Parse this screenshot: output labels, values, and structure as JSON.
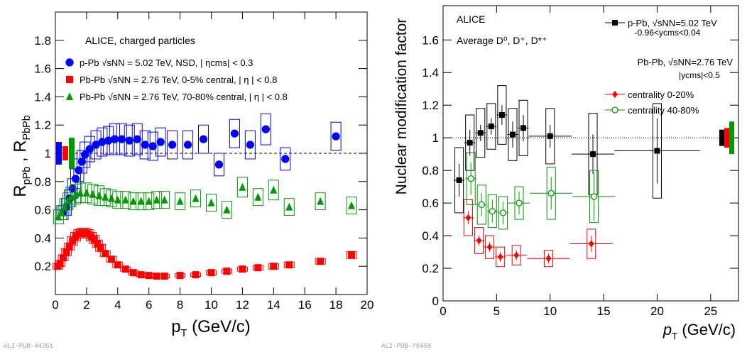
{
  "chart_data": [
    {
      "type": "scatter",
      "xlabel": [
        "p",
        "T",
        " (GeV/c)"
      ],
      "ylabel": [
        "R",
        "pPb",
        " , R",
        "PbPb"
      ],
      "annotations": [
        "ALICE, charged particles"
      ],
      "footnote": "ALI-PUB-44351",
      "xlim": [
        0,
        20
      ],
      "ylim": [
        0,
        2.0
      ],
      "xticks": [
        0,
        2,
        4,
        6,
        8,
        10,
        12,
        14,
        16,
        18,
        20
      ],
      "yticks": [
        0.2,
        0.4,
        0.6,
        0.8,
        1,
        1.2,
        1.4,
        1.6,
        1.8
      ],
      "ref_line": 1,
      "ref_style": "dashed",
      "series": [
        {
          "name": "p-Pb  √sNN = 5.02 TeV,  NSD, | ηcms| < 0.3",
          "color": "#0000ff",
          "marker": "circle",
          "x": [
            0.5,
            0.7,
            0.9,
            1.1,
            1.3,
            1.5,
            1.7,
            1.9,
            2.2,
            2.6,
            3.0,
            3.4,
            3.8,
            4.25,
            4.75,
            5.25,
            5.75,
            6.25,
            6.75,
            7.5,
            8.5,
            9.5,
            10.5,
            11.5,
            12.5,
            13.5,
            14.75,
            18
          ],
          "values": [
            0.58,
            0.62,
            0.68,
            0.75,
            0.82,
            0.88,
            0.94,
            0.99,
            1.03,
            1.06,
            1.08,
            1.09,
            1.1,
            1.1,
            1.09,
            1.1,
            1.06,
            1.05,
            1.08,
            1.06,
            1.06,
            1.1,
            0.92,
            1.14,
            1.06,
            1.17,
            0.96,
            1.12
          ],
          "sys": [
            0.05,
            0.06,
            0.06,
            0.07,
            0.07,
            0.08,
            0.08,
            0.09,
            0.09,
            0.1,
            0.1,
            0.1,
            0.11,
            0.11,
            0.11,
            0.11,
            0.1,
            0.1,
            0.1,
            0.1,
            0.1,
            0.1,
            0.08,
            0.1,
            0.1,
            0.11,
            0.08,
            0.1
          ]
        },
        {
          "name": "Pb-Pb  √sNN = 2.76 TeV,  0-5% central, | η | < 0.8",
          "color": "#ff0000",
          "marker": "square",
          "x": [
            0.15,
            0.3,
            0.5,
            0.7,
            0.9,
            1.1,
            1.3,
            1.5,
            1.7,
            1.9,
            2.1,
            2.3,
            2.5,
            2.7,
            2.9,
            3.2,
            3.6,
            4.0,
            4.5,
            5.0,
            5.5,
            6.0,
            6.5,
            7.0,
            8.0,
            9.0,
            10.0,
            11.0,
            12.0,
            13.0,
            14.0,
            15.0,
            17.0,
            19.0
          ],
          "values": [
            0.2,
            0.22,
            0.26,
            0.3,
            0.34,
            0.38,
            0.41,
            0.43,
            0.44,
            0.44,
            0.43,
            0.41,
            0.39,
            0.36,
            0.33,
            0.29,
            0.25,
            0.21,
            0.18,
            0.155,
            0.14,
            0.135,
            0.13,
            0.13,
            0.135,
            0.14,
            0.155,
            0.165,
            0.18,
            0.19,
            0.2,
            0.21,
            0.235,
            0.28
          ],
          "sys": [
            0.02,
            0.02,
            0.02,
            0.025,
            0.025,
            0.03,
            0.03,
            0.03,
            0.03,
            0.03,
            0.03,
            0.03,
            0.03,
            0.025,
            0.025,
            0.02,
            0.02,
            0.02,
            0.015,
            0.015,
            0.012,
            0.012,
            0.012,
            0.012,
            0.012,
            0.012,
            0.015,
            0.015,
            0.015,
            0.015,
            0.02,
            0.02,
            0.02,
            0.025
          ]
        },
        {
          "name": "Pb-Pb  √sNN = 2.76 TeV,  70-80% central, | η | < 0.8",
          "color": "#009900",
          "marker": "triangle",
          "x": [
            0.2,
            0.4,
            0.6,
            0.8,
            1.0,
            1.3,
            1.6,
            2.0,
            2.4,
            2.8,
            3.2,
            3.6,
            4.0,
            4.5,
            5.0,
            5.5,
            6.0,
            6.5,
            7.0,
            8.0,
            9.0,
            10.0,
            11.0,
            12.0,
            13.0,
            14.0,
            15.0,
            17.0,
            19.0
          ],
          "values": [
            0.55,
            0.58,
            0.62,
            0.66,
            0.69,
            0.71,
            0.72,
            0.72,
            0.71,
            0.7,
            0.69,
            0.68,
            0.67,
            0.67,
            0.66,
            0.66,
            0.66,
            0.67,
            0.67,
            0.66,
            0.68,
            0.65,
            0.6,
            0.76,
            0.69,
            0.74,
            0.62,
            0.66,
            0.63
          ],
          "sys": [
            0.05,
            0.05,
            0.06,
            0.06,
            0.07,
            0.07,
            0.07,
            0.07,
            0.07,
            0.07,
            0.06,
            0.06,
            0.06,
            0.06,
            0.06,
            0.06,
            0.06,
            0.06,
            0.06,
            0.06,
            0.06,
            0.06,
            0.06,
            0.07,
            0.06,
            0.07,
            0.06,
            0.06,
            0.06
          ]
        }
      ]
    },
    {
      "type": "scatter",
      "xlabel": [
        "p",
        "T",
        " (GeV/c)"
      ],
      "ylabel": [
        "Nuclear modification factor"
      ],
      "annotations": [
        "ALICE",
        "Average D⁰, D⁺, D*⁺",
        "Pb-Pb, √sNN=2.76 TeV",
        "|ycms|<0.5"
      ],
      "legend_note": "-0.96<ycms<0.04",
      "footnote": "ALI-PUB-79458",
      "xlim": [
        0,
        27.6
      ],
      "ylim": [
        0,
        1.81
      ],
      "xticks": [
        0,
        5,
        10,
        15,
        20,
        25
      ],
      "yticks": [
        0,
        0.2,
        0.4,
        0.6,
        0.8,
        1,
        1.2,
        1.4,
        1.6
      ],
      "ref_line": 1,
      "ref_style": "dotted",
      "series": [
        {
          "name": "p-Pb, √sNN=5.02 TeV",
          "color": "#000000",
          "marker": "square",
          "x": [
            1.5,
            2.5,
            3.5,
            4.5,
            5.5,
            6.5,
            7.5,
            10,
            14,
            20
          ],
          "values": [
            0.74,
            0.97,
            1.03,
            1.07,
            1.14,
            1.02,
            1.06,
            1.01,
            0.9,
            0.92
          ],
          "xerr": [
            0.5,
            0.5,
            0.5,
            0.5,
            0.5,
            0.5,
            0.5,
            2,
            2,
            4
          ],
          "stat": [
            0.1,
            0.08,
            0.05,
            0.05,
            0.06,
            0.08,
            0.08,
            0.07,
            0.12,
            0.2
          ],
          "sys": [
            0.2,
            0.17,
            0.15,
            0.14,
            0.18,
            0.16,
            0.17,
            0.17,
            0.25,
            0.29
          ]
        },
        {
          "name": "centrality 0-20%",
          "color": "#ff0000",
          "marker": "diamond",
          "x": [
            2.35,
            3.35,
            4.35,
            5.35,
            6.85,
            9.85,
            13.85
          ],
          "values": [
            0.51,
            0.37,
            0.33,
            0.27,
            0.28,
            0.26,
            0.35
          ],
          "xerr": [
            0.5,
            0.5,
            0.5,
            0.5,
            1,
            2,
            2
          ],
          "stat": [
            0.04,
            0.03,
            0.03,
            0.03,
            0.03,
            0.03,
            0.05
          ],
          "sys": [
            0.11,
            0.08,
            0.07,
            0.06,
            0.06,
            0.05,
            0.09
          ]
        },
        {
          "name": "centrality 40-80%",
          "color": "#009900",
          "marker": "circle-open",
          "x": [
            2.6,
            3.6,
            4.6,
            5.6,
            7.1,
            10.1,
            14.1
          ],
          "values": [
            0.75,
            0.59,
            0.55,
            0.54,
            0.6,
            0.66,
            0.64
          ],
          "xerr": [
            0.5,
            0.5,
            0.5,
            0.5,
            1,
            2,
            2
          ],
          "stat": [
            0.1,
            0.07,
            0.07,
            0.07,
            0.07,
            0.1,
            0.15
          ],
          "sys": [
            0.16,
            0.12,
            0.1,
            0.1,
            0.1,
            0.16,
            0.16
          ]
        }
      ]
    }
  ]
}
